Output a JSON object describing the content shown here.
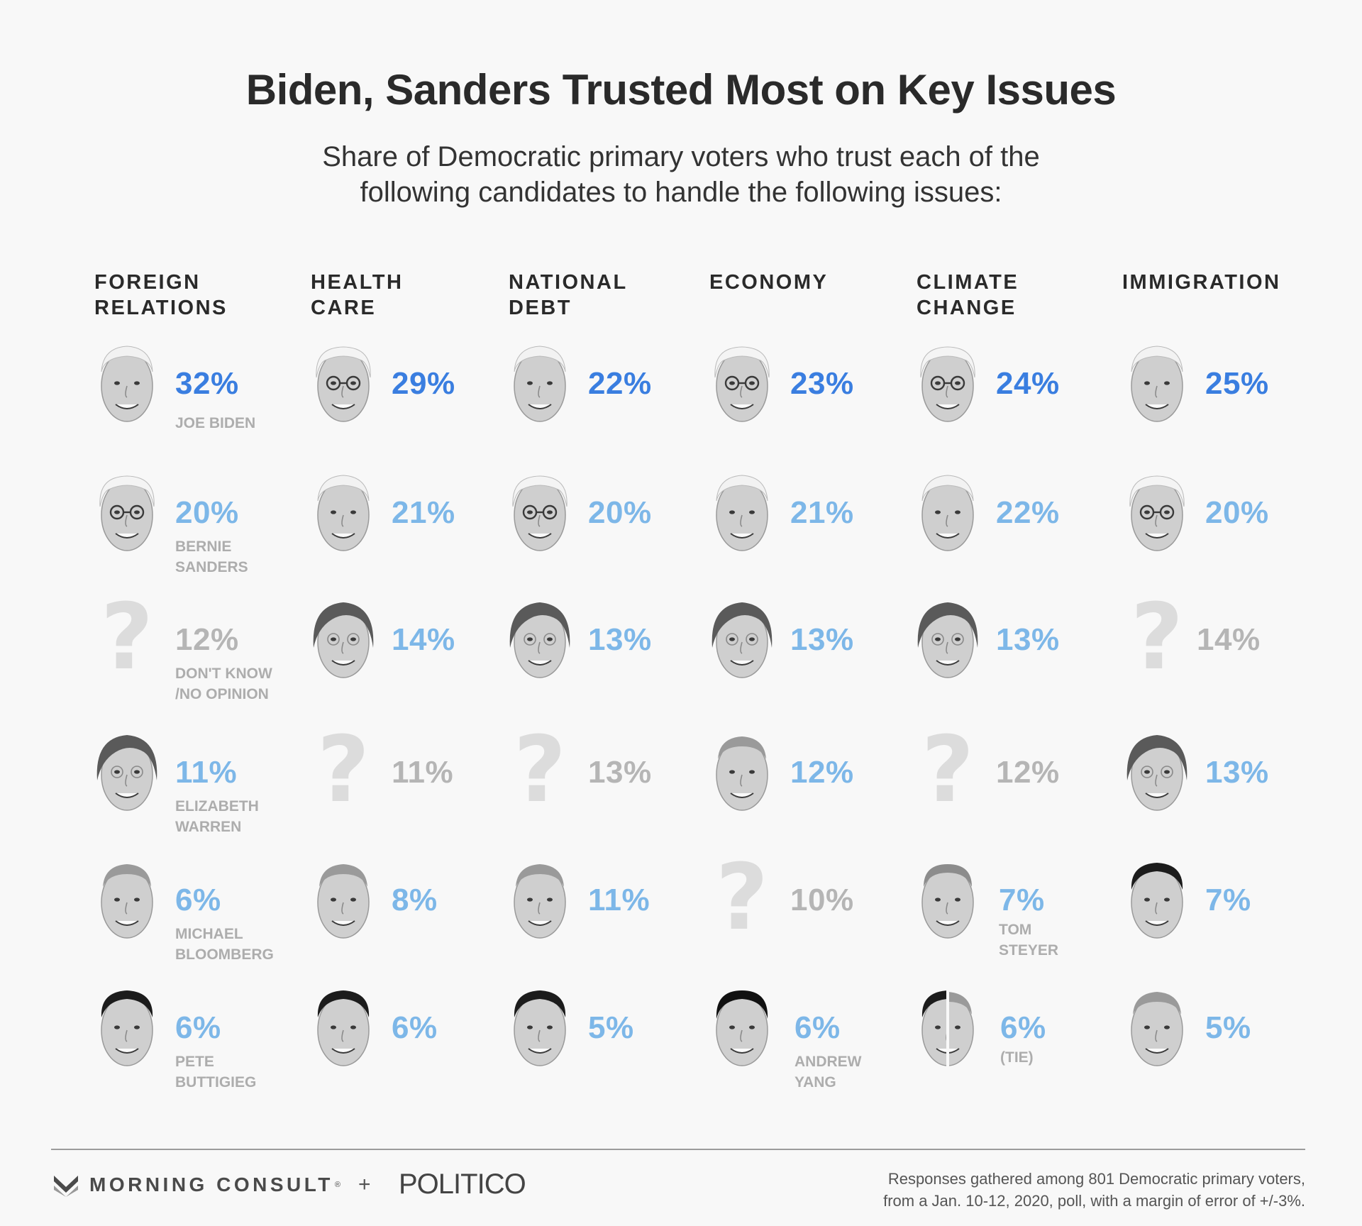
{
  "title": "Biden, Sanders Trusted Most on Key Issues",
  "subtitle": {
    "line1": "Share of Democratic primary voters who trust each of the",
    "line2": "following candidates to handle the following issues:"
  },
  "colors": {
    "leader": "#3a7ee0",
    "candidate": "#7db7e8",
    "dont_know": "#b5b5b5",
    "label": "#adadad"
  },
  "chart_data": {
    "type": "table",
    "title": "Biden, Sanders Trusted Most on Key Issues",
    "unit": "%",
    "issues": [
      {
        "issue": [
          "FOREIGN",
          "RELATIONS"
        ],
        "rankings": [
          {
            "candidate": "Joe Biden",
            "value": 32,
            "label": [
              "JOE BIDEN"
            ]
          },
          {
            "candidate": "Bernie Sanders",
            "value": 20,
            "label": [
              "BERNIE",
              "SANDERS"
            ]
          },
          {
            "candidate": "Don't Know / No Opinion",
            "value": 12,
            "label": [
              "DON'T KNOW",
              "/NO OPINION"
            ]
          },
          {
            "candidate": "Elizabeth Warren",
            "value": 11,
            "label": [
              "ELIZABETH",
              "WARREN"
            ]
          },
          {
            "candidate": "Michael Bloomberg",
            "value": 6,
            "label": [
              "MICHAEL",
              "BLOOMBERG"
            ]
          },
          {
            "candidate": "Pete Buttigieg",
            "value": 6,
            "label": [
              "PETE",
              "BUTTIGIEG"
            ]
          }
        ]
      },
      {
        "issue": [
          "HEALTH",
          "CARE"
        ],
        "rankings": [
          {
            "candidate": "Bernie Sanders",
            "value": 29
          },
          {
            "candidate": "Joe Biden",
            "value": 21
          },
          {
            "candidate": "Elizabeth Warren",
            "value": 14
          },
          {
            "candidate": "Don't Know / No Opinion",
            "value": 11
          },
          {
            "candidate": "Michael Bloomberg",
            "value": 8
          },
          {
            "candidate": "Pete Buttigieg",
            "value": 6
          }
        ]
      },
      {
        "issue": [
          "NATIONAL",
          "DEBT"
        ],
        "rankings": [
          {
            "candidate": "Joe Biden",
            "value": 22
          },
          {
            "candidate": "Bernie Sanders",
            "value": 20
          },
          {
            "candidate": "Elizabeth Warren",
            "value": 13
          },
          {
            "candidate": "Don't Know / No Opinion",
            "value": 13
          },
          {
            "candidate": "Michael Bloomberg",
            "value": 11
          },
          {
            "candidate": "Pete Buttigieg",
            "value": 5
          }
        ]
      },
      {
        "issue": [
          "ECONOMY"
        ],
        "rankings": [
          {
            "candidate": "Bernie Sanders",
            "value": 23
          },
          {
            "candidate": "Joe Biden",
            "value": 21
          },
          {
            "candidate": "Elizabeth Warren",
            "value": 13
          },
          {
            "candidate": "Michael Bloomberg",
            "value": 12
          },
          {
            "candidate": "Don't Know / No Opinion",
            "value": 10
          },
          {
            "candidate": "Andrew Yang",
            "value": 6,
            "label": [
              "ANDREW",
              "YANG"
            ]
          }
        ]
      },
      {
        "issue": [
          "CLIMATE",
          "CHANGE"
        ],
        "rankings": [
          {
            "candidate": "Bernie Sanders",
            "value": 24
          },
          {
            "candidate": "Joe Biden",
            "value": 22
          },
          {
            "candidate": "Elizabeth Warren",
            "value": 13
          },
          {
            "candidate": "Don't Know / No Opinion",
            "value": 12
          },
          {
            "candidate": "Tom Steyer",
            "value": 7,
            "label": [
              "TOM",
              "STEYER"
            ]
          },
          {
            "candidate": "Pete Buttigieg / Michael Bloomberg",
            "value": 6,
            "label": [
              "(TIE)"
            ]
          }
        ]
      },
      {
        "issue": [
          "IMMIGRATION"
        ],
        "rankings": [
          {
            "candidate": "Joe Biden",
            "value": 25
          },
          {
            "candidate": "Bernie Sanders",
            "value": 20
          },
          {
            "candidate": "Don't Know / No Opinion",
            "value": 14
          },
          {
            "candidate": "Elizabeth Warren",
            "value": 13
          },
          {
            "candidate": "Pete Buttigieg",
            "value": 7
          },
          {
            "candidate": "Michael Bloomberg",
            "value": 5
          }
        ]
      }
    ]
  },
  "footer": {
    "brand": "MORNING CONSULT",
    "brand_mark": "®",
    "plus": "+",
    "partner": "POLITICO",
    "source_line1": "Responses gathered among 801 Democratic primary voters,",
    "source_line2": "from a Jan. 10-12, 2020, poll, with a margin of error of +/-3%."
  }
}
